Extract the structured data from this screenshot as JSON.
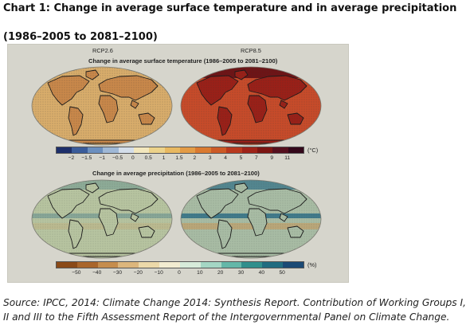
{
  "header": {
    "title": "Chart 1: Change in average surface temperature and in average precipitation",
    "subtitle": "(1986–2005 to 2081–2100)"
  },
  "figure": {
    "scenario_left": "RCP2.6",
    "scenario_right": "RCP8.5",
    "temperature_heading": "Change in average surface temperature (1986–2005 to 2081–2100)",
    "precipitation_heading": "Change in average precipitation (1986–2005 to 2081–2100)",
    "temperature_unit": "(°C)",
    "precipitation_unit": "(%)",
    "temperature_ticks": [
      "−2",
      "−1.5",
      "−1",
      "−0.5",
      "0",
      "0.5",
      "1",
      "1.5",
      "2",
      "3",
      "4",
      "5",
      "7",
      "9",
      "11"
    ],
    "precipitation_ticks": [
      "−50",
      "−40",
      "−30",
      "−20",
      "−10",
      "0",
      "10",
      "20",
      "30",
      "40",
      "50"
    ],
    "temperature_colors": [
      "#1d2f6a",
      "#3a5c9a",
      "#6b8fbf",
      "#9fb8d6",
      "#d4deea",
      "#f3e7bd",
      "#ecd28a",
      "#e8b860",
      "#e39b45",
      "#da7a30",
      "#cc5a26",
      "#b8391e",
      "#9e2319",
      "#7c1613",
      "#55101e",
      "#33081a"
    ],
    "precipitation_colors": [
      "#8a4a18",
      "#a9662b",
      "#c58d4d",
      "#dcb67c",
      "#ecd9a9",
      "#f2ecd1",
      "#d7ebda",
      "#a4d6c4",
      "#64b7a8",
      "#318f8c",
      "#216c80",
      "#1b4a75"
    ],
    "map_colors": {
      "temp_rcp26": "#d9ad6b",
      "temp_rcp26_warm": "#c9884a",
      "temp_rcp85": "#c74b2a",
      "temp_rcp85_hot": "#9a2018",
      "precip_rcp26": "#b7c4a0",
      "precip_rcp85": "#a8bca4",
      "precip_wet": "#2f6f86",
      "precip_dry": "#c69a5e",
      "coast": "#1a1a1a"
    }
  },
  "source": "Source: IPCC, 2014: Climate Change 2014: Synthesis Report. Contribution of Working Groups I, II and III to the Fifth Assessment Report of the Intergovernmental Panel on Climate Change."
}
